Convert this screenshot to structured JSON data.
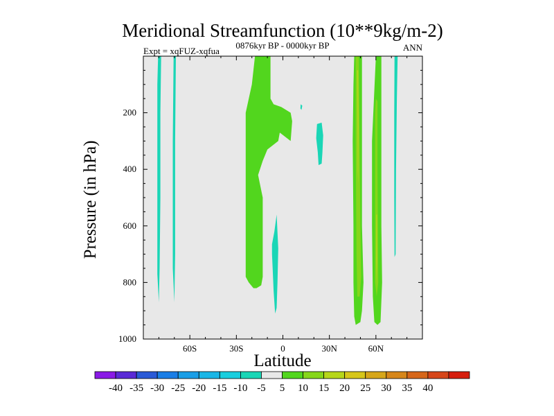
{
  "chart_data": {
    "type": "contour",
    "title": "Meridional Streamfunction (10**9kg/m-2)",
    "left_label": "Expt = xqFUZ-xqfua",
    "center_label": "0876kyr BP - 0000kyr BP",
    "right_label": "ANN",
    "xlabel": "Latitude",
    "ylabel": "Pressure (in hPa)",
    "xlim": [
      -90,
      90
    ],
    "ylim": [
      1000,
      0
    ],
    "x_ticks": [
      {
        "value": -60,
        "label": "60S"
      },
      {
        "value": -30,
        "label": "30S"
      },
      {
        "value": 0,
        "label": "0"
      },
      {
        "value": 30,
        "label": "30N"
      },
      {
        "value": 60,
        "label": "60N"
      }
    ],
    "y_ticks": [
      {
        "value": 200,
        "label": "200"
      },
      {
        "value": 400,
        "label": "400"
      },
      {
        "value": 600,
        "label": "600"
      },
      {
        "value": 800,
        "label": "800"
      },
      {
        "value": 1000,
        "label": "1000"
      }
    ],
    "background_color": "#e8e8e8",
    "colorbar": {
      "colors": [
        "#8a1ae6",
        "#5a2ad6",
        "#2a5ad6",
        "#1a7ee6",
        "#1a9ee6",
        "#1ab6e6",
        "#1acede",
        "#1ad6b6",
        "#e8e8e8",
        "#52d61e",
        "#86d61a",
        "#b6d61a",
        "#d6c61a",
        "#d6a61a",
        "#d6861a",
        "#d6661a",
        "#d6461a",
        "#d61e0e"
      ],
      "labels": [
        "-40",
        "-35",
        "-30",
        "-25",
        "-20",
        "-15",
        "-10",
        "-5",
        "5",
        "10",
        "15",
        "20",
        "25",
        "30",
        "35",
        "40"
      ]
    },
    "regions": [
      {
        "level": -10,
        "color": "#1ad6b6",
        "points": [
          [
            -80.5,
            0
          ],
          [
            -78.5,
            0
          ],
          [
            -79,
            200
          ],
          [
            -79,
            500
          ],
          [
            -79.5,
            750
          ],
          [
            -80,
            870
          ],
          [
            -81,
            770
          ],
          [
            -81,
            400
          ],
          [
            -81,
            100
          ]
        ]
      },
      {
        "level": -10,
        "color": "#1ad6b6",
        "points": [
          [
            -70.5,
            0
          ],
          [
            -69,
            0
          ],
          [
            -69.5,
            300
          ],
          [
            -69.5,
            700
          ],
          [
            -70,
            870
          ],
          [
            -71,
            750
          ],
          [
            -71,
            300
          ]
        ]
      },
      {
        "level": -10,
        "color": "#1ad6b6",
        "points": [
          [
            -7,
            665
          ],
          [
            -5.5,
            620
          ],
          [
            -4,
            560
          ],
          [
            -3,
            680
          ],
          [
            -3.5,
            800
          ],
          [
            -4,
            890
          ],
          [
            -5,
            910
          ],
          [
            -6,
            830
          ],
          [
            -6.5,
            760
          ],
          [
            -7,
            700
          ]
        ]
      },
      {
        "level": -10,
        "color": "#1ad6b6",
        "points": [
          [
            22,
            240
          ],
          [
            25,
            235
          ],
          [
            26,
            280
          ],
          [
            25.5,
            340
          ],
          [
            25,
            380
          ],
          [
            23,
            385
          ],
          [
            22.5,
            340
          ],
          [
            21.5,
            290
          ]
        ]
      },
      {
        "level": -10,
        "color": "#1ad6b6",
        "points": [
          [
            11.5,
            170
          ],
          [
            12.5,
            175
          ],
          [
            12,
            190
          ],
          [
            11.3,
            185
          ]
        ]
      },
      {
        "level": -10,
        "color": "#1ad6b6",
        "points": [
          [
            72,
            0
          ],
          [
            74,
            0
          ],
          [
            73.5,
            150
          ],
          [
            73,
            400
          ],
          [
            72.7,
            700
          ],
          [
            72,
            710
          ],
          [
            71.8,
            500
          ],
          [
            71.8,
            200
          ]
        ]
      },
      {
        "level": 5,
        "color": "#52d61e",
        "points": [
          [
            -18,
            0
          ],
          [
            -8,
            0
          ],
          [
            -8,
            150
          ],
          [
            -6,
            170
          ],
          [
            -1,
            180
          ],
          [
            5,
            200
          ],
          [
            6,
            230
          ],
          [
            5,
            300
          ],
          [
            -2,
            270
          ],
          [
            -3,
            300
          ],
          [
            -10,
            330
          ],
          [
            -13,
            370
          ],
          [
            -16,
            420
          ],
          [
            -13,
            500
          ],
          [
            -13,
            600
          ],
          [
            -13,
            780
          ],
          [
            -14,
            810
          ],
          [
            -17,
            820
          ],
          [
            -19,
            820
          ],
          [
            -22,
            800
          ],
          [
            -24,
            780
          ],
          [
            -24,
            700
          ],
          [
            -24,
            500
          ],
          [
            -24,
            200
          ],
          [
            -20,
            100
          ]
        ]
      },
      {
        "level": 5,
        "color": "#52d61e",
        "points": [
          [
            46,
            0
          ],
          [
            51,
            0
          ],
          [
            51,
            200
          ],
          [
            51,
            600
          ],
          [
            52,
            800
          ],
          [
            51,
            900
          ],
          [
            50,
            940
          ],
          [
            47,
            950
          ],
          [
            46,
            920
          ],
          [
            45.5,
            800
          ],
          [
            45.5,
            600
          ],
          [
            45,
            300
          ],
          [
            45.5,
            100
          ]
        ]
      },
      {
        "level": 5,
        "color": "#52d61e",
        "points": [
          [
            62,
            0
          ],
          [
            63.5,
            0
          ],
          [
            63.5,
            300
          ],
          [
            63.5,
            600
          ],
          [
            64,
            800
          ],
          [
            63,
            940
          ],
          [
            61,
            950
          ],
          [
            59,
            940
          ],
          [
            58,
            850
          ],
          [
            57.5,
            600
          ],
          [
            57.5,
            300
          ],
          [
            60,
            0
          ]
        ]
      },
      {
        "level": 10,
        "color": "#86d61a",
        "points": [
          [
            47,
            0
          ],
          [
            49,
            0
          ],
          [
            49.5,
            300
          ],
          [
            50,
            600
          ],
          [
            50.5,
            780
          ],
          [
            49.5,
            850
          ],
          [
            48,
            850
          ],
          [
            47.5,
            700
          ],
          [
            47,
            300
          ]
        ]
      },
      {
        "level": 10,
        "color": "#86d61a",
        "points": [
          [
            60,
            150
          ],
          [
            61,
            160
          ],
          [
            61,
            400
          ],
          [
            61.5,
            800
          ],
          [
            60.5,
            850
          ],
          [
            59.5,
            800
          ],
          [
            59.5,
            400
          ],
          [
            59.5,
            200
          ]
        ]
      },
      {
        "level": 15,
        "color": "#b6d61a",
        "points": [
          [
            47.8,
            50
          ],
          [
            48.6,
            50
          ],
          [
            48.8,
            250
          ],
          [
            48.6,
            450
          ],
          [
            48.2,
            400
          ],
          [
            48,
            200
          ]
        ]
      },
      {
        "level": 15,
        "color": "#b6d61a",
        "points": [
          [
            60.2,
            560
          ],
          [
            60.8,
            560
          ],
          [
            60.8,
            720
          ],
          [
            60.4,
            800
          ],
          [
            60.1,
            720
          ]
        ]
      },
      {
        "level": -5,
        "color": "#e8e8e8",
        "points": [
          [
            -74,
            0
          ],
          [
            -73.6,
            0
          ],
          [
            -73.6,
            720
          ],
          [
            -74,
            720
          ]
        ]
      },
      {
        "level": -5,
        "color": "#e8e8e8",
        "points": [
          [
            67,
            0
          ],
          [
            67.5,
            0
          ],
          [
            67.5,
            900
          ],
          [
            67,
            900
          ]
        ]
      }
    ]
  }
}
